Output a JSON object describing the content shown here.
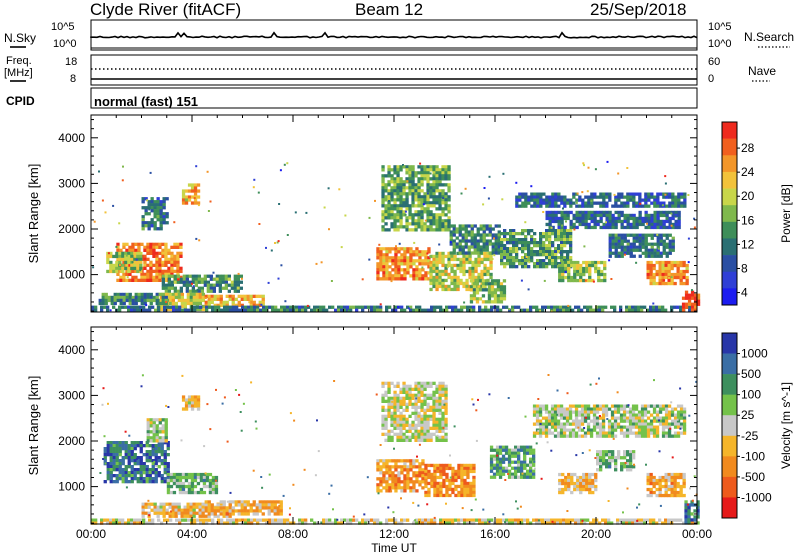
{
  "header": {
    "station": "Clyde River (fitACF)",
    "beam": "Beam 12",
    "date": "25/Sep/2018"
  },
  "panels": {
    "nsky_label": "N.Sky",
    "nsky_ticks": [
      "10^5",
      "10^0"
    ],
    "nsearch_label": "N.Search",
    "nsearch_ticks": [
      "10^5",
      "10^0"
    ],
    "freq_label": "Freq.",
    "freq_unit": "[MHz]",
    "freq_ticks": [
      "18",
      "8"
    ],
    "nave_label": "Nave",
    "nave_ticks": [
      "60",
      "0"
    ],
    "cpid_label": "CPID",
    "cpid_value": "normal (fast) 151"
  },
  "chart_data": [
    {
      "type": "heatmap",
      "name": "Power",
      "xlabel": "Time UT",
      "ylabel": "Slant Range [km]",
      "x_ticks": [
        "00:00",
        "04:00",
        "08:00",
        "12:00",
        "16:00",
        "20:00",
        "00:00"
      ],
      "xlim_hours": [
        0,
        24
      ],
      "y_ticks": [
        1000,
        2000,
        3000,
        4000
      ],
      "ylim": [
        180,
        4500
      ],
      "colorbar": {
        "label": "Power [dB]",
        "ticks": [
          "28",
          "24",
          "20",
          "16",
          "12",
          "8",
          "4"
        ],
        "colors": [
          "#ee2a1e",
          "#f15f1e",
          "#f39629",
          "#f2c23a",
          "#c8d64a",
          "#7fb84c",
          "#3e8e59",
          "#2a6f73",
          "#2a4fa3",
          "#2f3fd6",
          "#1c1cf0"
        ]
      },
      "regions": [
        {
          "t0": 1.0,
          "t1": 3.6,
          "r0": 850,
          "r1": 1700,
          "level": 0.85
        },
        {
          "t0": 0.6,
          "t1": 2.0,
          "r0": 1100,
          "r1": 1500,
          "level": 0.55
        },
        {
          "t0": 2.8,
          "t1": 6.0,
          "r0": 650,
          "r1": 1000,
          "level": 0.4
        },
        {
          "t0": 2.6,
          "t1": 4.5,
          "r0": 250,
          "r1": 600,
          "level": 0.6
        },
        {
          "t0": 4.5,
          "t1": 6.8,
          "r0": 330,
          "r1": 560,
          "level": 0.75
        },
        {
          "t0": 0.3,
          "t1": 3.0,
          "r0": 350,
          "r1": 600,
          "level": 0.35
        },
        {
          "t0": 0.0,
          "t1": 24.0,
          "r0": 200,
          "r1": 320,
          "level": 0.3
        },
        {
          "t0": 2.0,
          "t1": 3.0,
          "r0": 2000,
          "r1": 2700,
          "level": 0.3
        },
        {
          "t0": 3.6,
          "t1": 4.3,
          "r0": 2600,
          "r1": 3000,
          "level": 0.7
        },
        {
          "t0": 11.3,
          "t1": 13.4,
          "r0": 900,
          "r1": 1600,
          "level": 0.8
        },
        {
          "t0": 13.4,
          "t1": 15.8,
          "r0": 700,
          "r1": 1500,
          "level": 0.6
        },
        {
          "t0": 11.5,
          "t1": 14.2,
          "r0": 2000,
          "r1": 3400,
          "level": 0.45
        },
        {
          "t0": 14.2,
          "t1": 16.2,
          "r0": 1500,
          "r1": 2100,
          "level": 0.35
        },
        {
          "t0": 15.0,
          "t1": 16.4,
          "r0": 400,
          "r1": 900,
          "level": 0.5
        },
        {
          "t0": 16.2,
          "t1": 19.0,
          "r0": 1200,
          "r1": 2000,
          "level": 0.4
        },
        {
          "t0": 16.8,
          "t1": 23.5,
          "r0": 2500,
          "r1": 2800,
          "level": 0.25
        },
        {
          "t0": 18.0,
          "t1": 23.3,
          "r0": 2050,
          "r1": 2400,
          "level": 0.25
        },
        {
          "t0": 18.5,
          "t1": 20.3,
          "r0": 850,
          "r1": 1300,
          "level": 0.55
        },
        {
          "t0": 20.5,
          "t1": 23.0,
          "r0": 1400,
          "r1": 1900,
          "level": 0.3
        },
        {
          "t0": 22.0,
          "t1": 23.6,
          "r0": 800,
          "r1": 1300,
          "level": 0.8
        },
        {
          "t0": 23.4,
          "t1": 24.0,
          "r0": 200,
          "r1": 650,
          "level": 0.95
        }
      ]
    },
    {
      "type": "heatmap",
      "name": "Velocity",
      "xlabel": "Time UT",
      "ylabel": "Slant Range [km]",
      "x_ticks": [
        "00:00",
        "04:00",
        "08:00",
        "12:00",
        "16:00",
        "20:00",
        "00:00"
      ],
      "xlim_hours": [
        0,
        24
      ],
      "y_ticks": [
        1000,
        2000,
        3000,
        4000
      ],
      "ylim": [
        180,
        4500
      ],
      "colorbar": {
        "label": "Velocity [m s^-1]",
        "ticks": [
          "1000",
          "500",
          "100",
          "25",
          "-25",
          "-100",
          "-500",
          "-1000"
        ],
        "colors": [
          "#2836a8",
          "#3a6ea5",
          "#3d8f5e",
          "#74c24a",
          "#c8c8c8",
          "#f5b52a",
          "#f18a1e",
          "#ee5a1c",
          "#e61a1a"
        ]
      },
      "regions": [
        {
          "t0": 0.5,
          "t1": 3.0,
          "r0": 1100,
          "r1": 2000,
          "level": 0.15
        },
        {
          "t0": 3.0,
          "t1": 5.0,
          "r0": 900,
          "r1": 1300,
          "level": 0.35
        },
        {
          "t0": 2.0,
          "t1": 5.5,
          "r0": 350,
          "r1": 650,
          "level": 0.6
        },
        {
          "t0": 4.5,
          "t1": 7.5,
          "r0": 400,
          "r1": 700,
          "level": 0.65
        },
        {
          "t0": 0.0,
          "t1": 24.0,
          "r0": 200,
          "r1": 300,
          "level": 0.55
        },
        {
          "t0": 2.2,
          "t1": 3.0,
          "r0": 2000,
          "r1": 2500,
          "level": 0.45
        },
        {
          "t0": 3.6,
          "t1": 4.2,
          "r0": 2700,
          "r1": 3000,
          "level": 0.6
        },
        {
          "t0": 11.3,
          "t1": 13.2,
          "r0": 900,
          "r1": 1600,
          "level": 0.72
        },
        {
          "t0": 13.2,
          "t1": 15.2,
          "r0": 800,
          "r1": 1500,
          "level": 0.75
        },
        {
          "t0": 11.5,
          "t1": 14.0,
          "r0": 2000,
          "r1": 3300,
          "level": 0.5
        },
        {
          "t0": 15.8,
          "t1": 17.5,
          "r0": 1200,
          "r1": 1900,
          "level": 0.3
        },
        {
          "t0": 17.5,
          "t1": 23.5,
          "r0": 2100,
          "r1": 2800,
          "level": 0.45
        },
        {
          "t0": 18.5,
          "t1": 20.0,
          "r0": 850,
          "r1": 1300,
          "level": 0.62
        },
        {
          "t0": 20.0,
          "t1": 21.5,
          "r0": 1400,
          "r1": 1800,
          "level": 0.35
        },
        {
          "t0": 22.0,
          "t1": 23.5,
          "r0": 800,
          "r1": 1300,
          "level": 0.65
        },
        {
          "t0": 23.5,
          "t1": 24.0,
          "r0": 200,
          "r1": 700,
          "level": 0.2
        }
      ]
    }
  ]
}
